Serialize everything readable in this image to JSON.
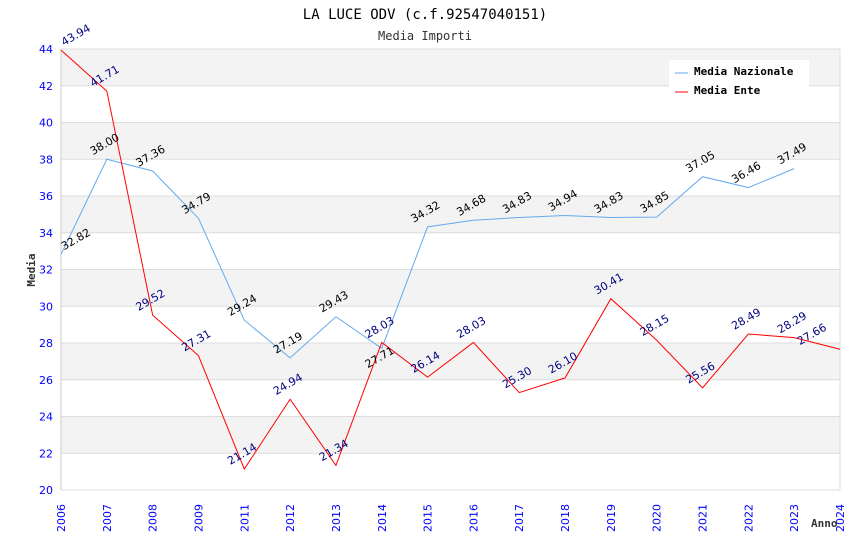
{
  "chart_data": {
    "type": "line",
    "title": "LA LUCE ODV (c.f.92547040151)",
    "subtitle": "Media Importi",
    "xlabel": "Anno",
    "ylabel": "Media",
    "ylim": [
      20,
      44
    ],
    "yticks": [
      "20",
      "22",
      "24",
      "26",
      "28",
      "30",
      "32",
      "34",
      "36",
      "38",
      "40",
      "42",
      "44"
    ],
    "categories": [
      "2006",
      "2007",
      "2008",
      "2009",
      "2011",
      "2012",
      "2013",
      "2014",
      "2015",
      "2016",
      "2017",
      "2018",
      "2019",
      "2020",
      "2021",
      "2022",
      "2023",
      "2024"
    ],
    "legend_position": "top-right",
    "grid": true,
    "series": [
      {
        "name": "Media Nazionale",
        "color": "#66aaee",
        "label_color": "#000000",
        "values": [
          32.82,
          38.0,
          37.36,
          34.79,
          29.24,
          27.19,
          29.43,
          27.71,
          34.32,
          34.68,
          34.83,
          34.94,
          34.83,
          34.85,
          37.05,
          36.46,
          37.49,
          null
        ],
        "labels": [
          "32.82",
          "38.00",
          "37.36",
          "34.79",
          "29.24",
          "27.19",
          "29.43",
          "27.71",
          "34.32",
          "34.68",
          "34.83",
          "34.94",
          "34.83",
          "34.85",
          "37.05",
          "36.46",
          "37.49",
          null
        ]
      },
      {
        "name": "Media Ente",
        "color": "#ff0000",
        "label_color": "#000080",
        "values": [
          43.94,
          41.71,
          29.52,
          27.31,
          21.14,
          24.94,
          21.34,
          28.03,
          26.14,
          28.03,
          25.3,
          26.1,
          30.41,
          28.15,
          25.56,
          28.49,
          28.29,
          27.66
        ],
        "labels": [
          "43.94",
          "41.71",
          "29.52",
          "27.31",
          "21.14",
          "24.94",
          "21.34",
          "28.03",
          "26.14",
          "28.03",
          "25.30",
          "26.10",
          "30.41",
          "28.15",
          "25.56",
          "28.49",
          "28.29",
          "27.66"
        ]
      }
    ]
  }
}
